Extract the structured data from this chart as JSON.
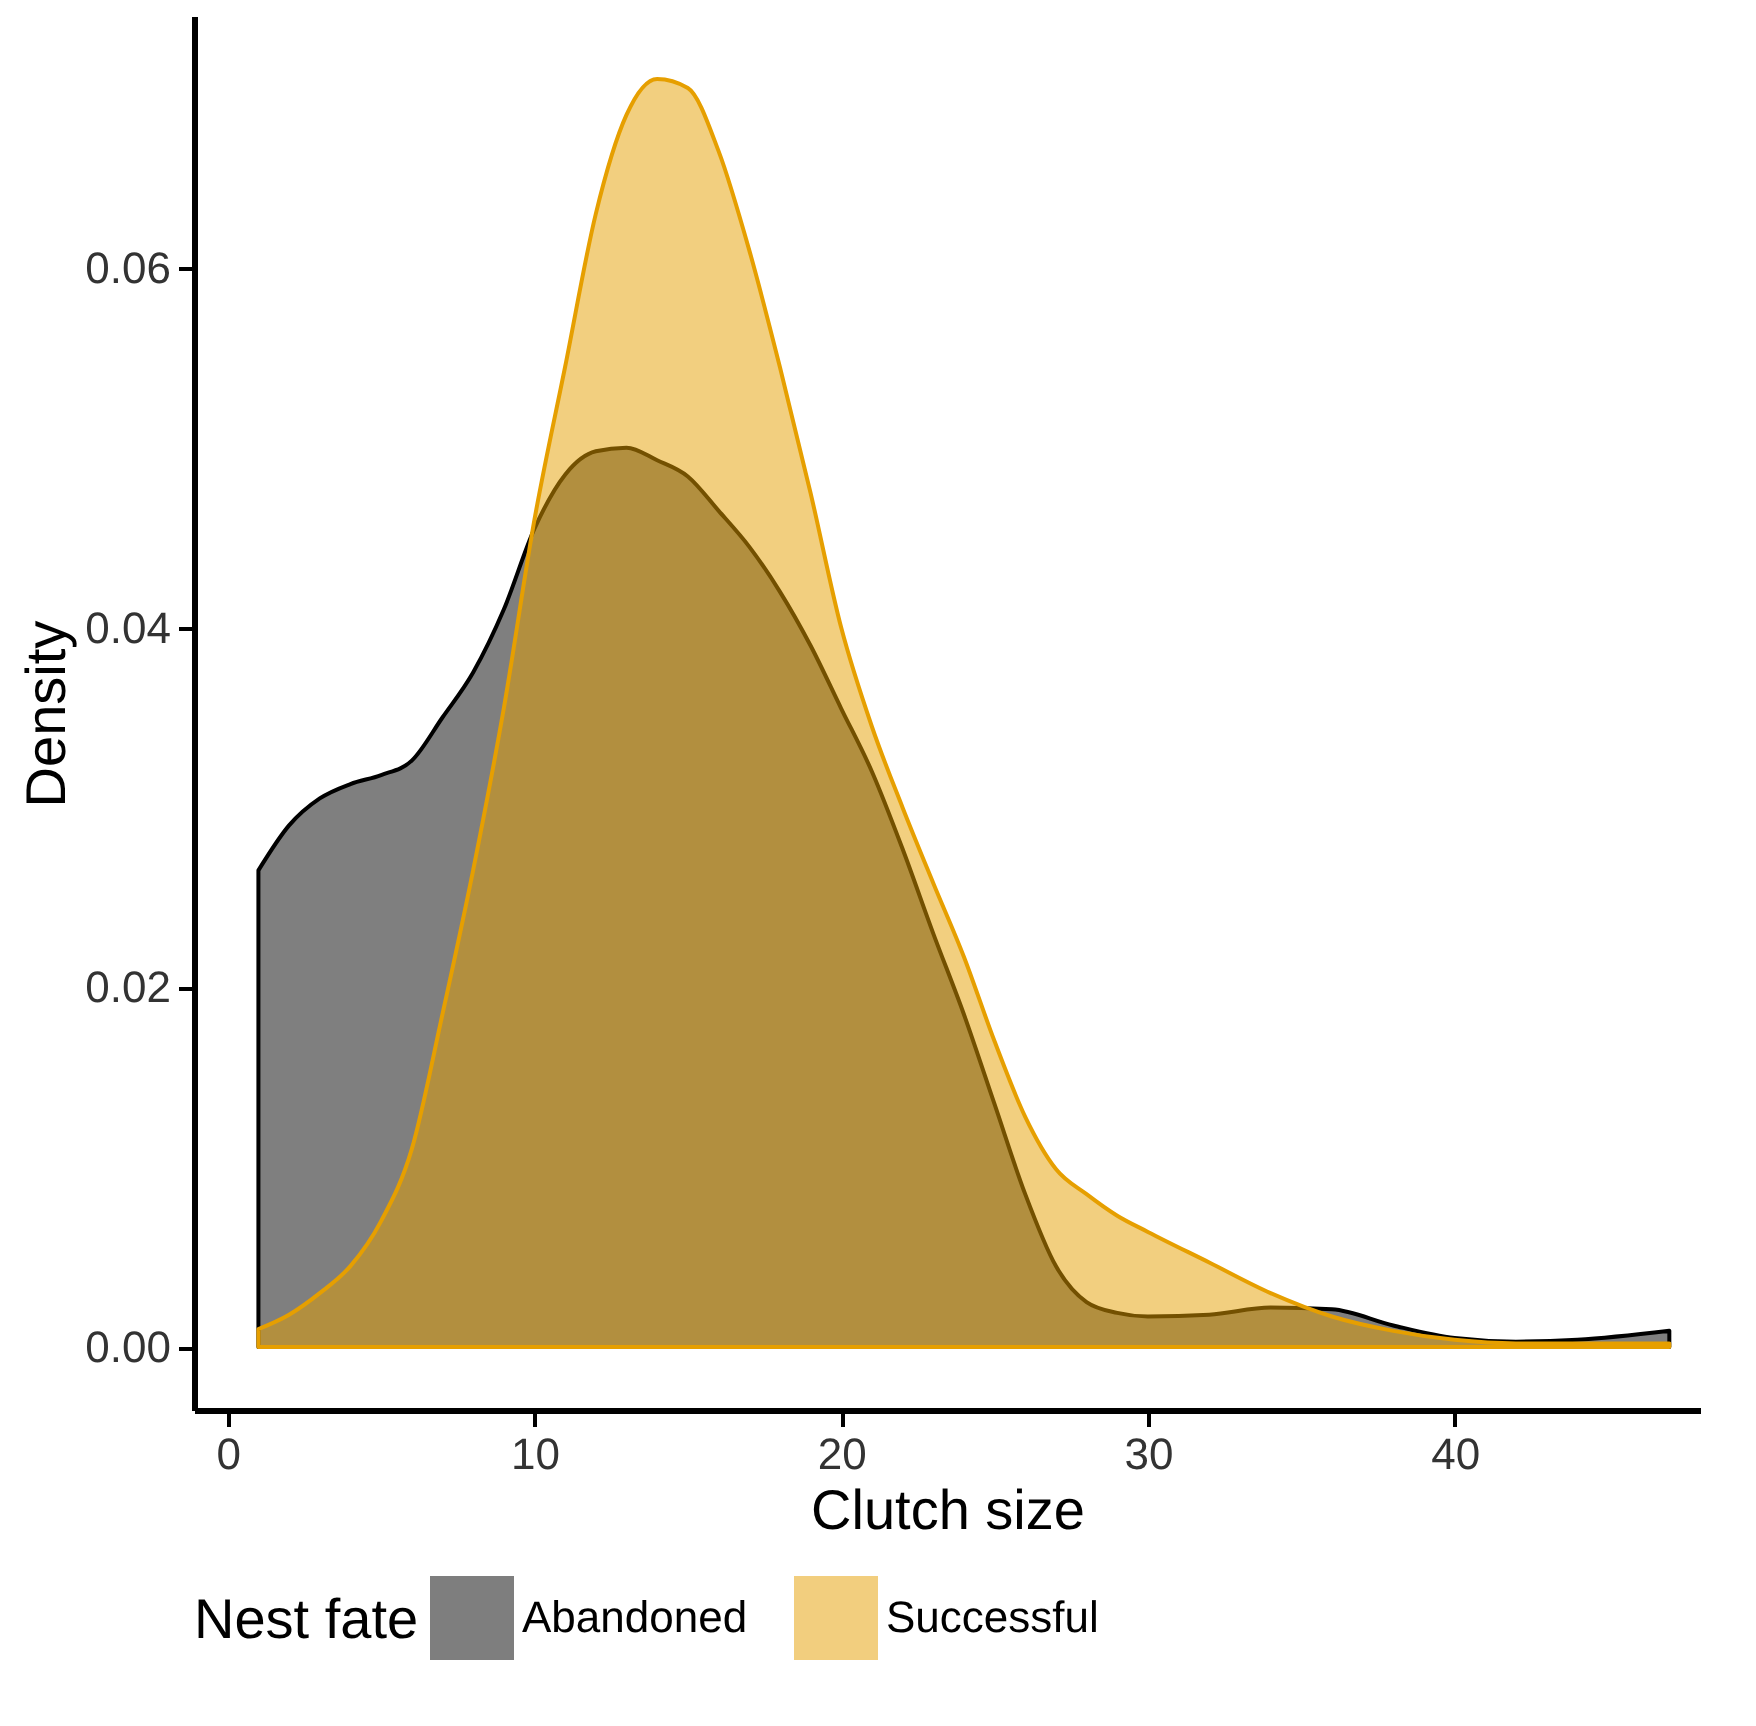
{
  "chart_data": {
    "type": "area",
    "xlabel": "Clutch size",
    "ylabel": "Density",
    "legend_title": "Nest fate",
    "legend": "bottom",
    "grid": false,
    "xlim": [
      -1.1,
      48
    ],
    "xticks": [
      0,
      10,
      20,
      30,
      40
    ],
    "ylim": [
      -0.0035,
      0.074
    ],
    "yticks": [
      {
        "value": 0,
        "label": "0.00"
      },
      {
        "value": 0.02,
        "label": "0.02"
      },
      {
        "value": 0.04,
        "label": "0.04"
      },
      {
        "value": 0.06,
        "label": "0.06"
      }
    ],
    "x": [
      1,
      2,
      3,
      4,
      5,
      6,
      7,
      8,
      9,
      10,
      11,
      12,
      13,
      14,
      15,
      16,
      17,
      18,
      19,
      20,
      21,
      22,
      23,
      24,
      25,
      26,
      27,
      28,
      29,
      30,
      32,
      34,
      36,
      38,
      40,
      42,
      44,
      47
    ],
    "series": [
      {
        "name": "Abandoned",
        "color": "#000000",
        "values": [
          0.0265,
          0.029,
          0.0305,
          0.0313,
          0.0318,
          0.0326,
          0.035,
          0.0375,
          0.041,
          0.0455,
          0.0485,
          0.0498,
          0.05,
          0.0493,
          0.0484,
          0.0465,
          0.0445,
          0.042,
          0.039,
          0.0355,
          0.032,
          0.0277,
          0.023,
          0.0185,
          0.0135,
          0.0085,
          0.0045,
          0.0025,
          0.0019,
          0.0017,
          0.0018,
          0.0022,
          0.0021,
          0.0012,
          0.0005,
          0.0003,
          0.0004,
          0.0009
        ]
      },
      {
        "name": "Successful",
        "color": "#e69f00",
        "values": [
          0.001,
          0.0018,
          0.003,
          0.0045,
          0.007,
          0.011,
          0.0185,
          0.0265,
          0.0355,
          0.046,
          0.0545,
          0.063,
          0.0685,
          0.0705,
          0.07,
          0.0665,
          0.061,
          0.0545,
          0.0475,
          0.04,
          0.0345,
          0.03,
          0.0258,
          0.0217,
          0.017,
          0.0128,
          0.0099,
          0.0085,
          0.0073,
          0.0064,
          0.0047,
          0.003,
          0.0017,
          0.0009,
          0.0004,
          0.0002,
          0.0002,
          0.0002
        ]
      }
    ]
  }
}
